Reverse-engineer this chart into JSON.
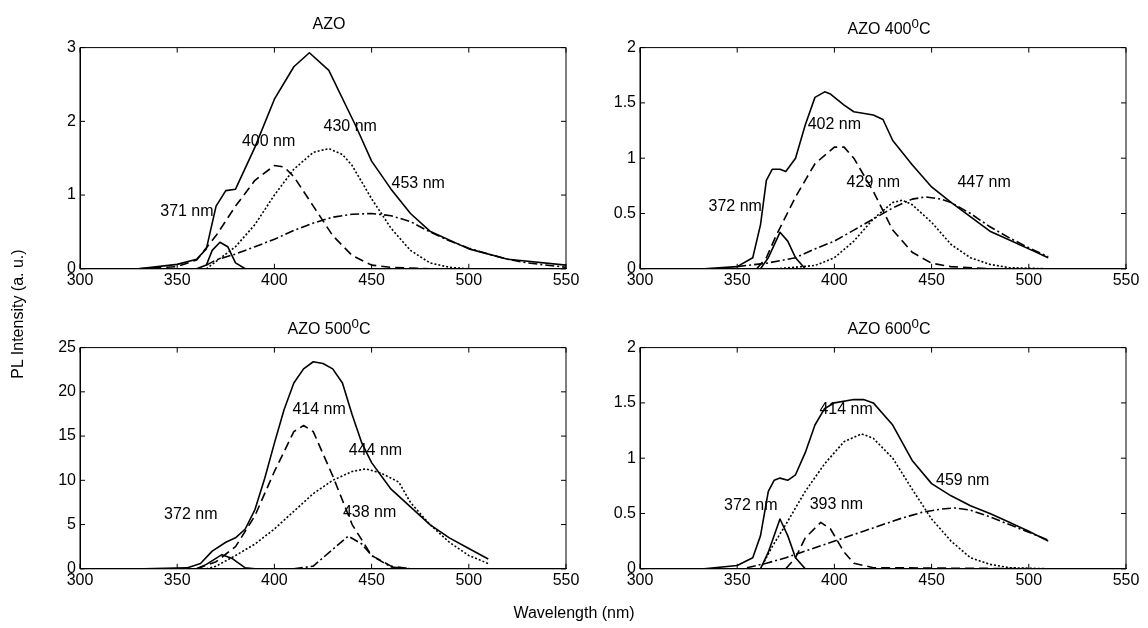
{
  "chart_data": [
    {
      "type": "line",
      "title": "AZO",
      "ylabel": "PL Intensity (a. u.)",
      "xlim": [
        300,
        550
      ],
      "ylim": [
        0,
        3
      ],
      "xticks": [
        300,
        350,
        400,
        450,
        500,
        550
      ],
      "yticks": [
        0,
        1,
        2,
        3
      ],
      "grid": false,
      "legend": false,
      "annotations": [
        {
          "text": "371 nm",
          "x": 372,
          "y": 0.36
        },
        {
          "text": "400 nm",
          "x": 400,
          "y": 1.4
        },
        {
          "text": "430 nm",
          "x": 428,
          "y": 1.63
        },
        {
          "text": "453 nm",
          "x": 450,
          "y": 0.75
        }
      ],
      "series": [
        {
          "type": "line",
          "color": "#000000",
          "line_style": "solid",
          "x": [
            330,
            350,
            360,
            365,
            370,
            375,
            380,
            390,
            400,
            410,
            418,
            428,
            442,
            450,
            460,
            470,
            480,
            500,
            520,
            550
          ],
          "values": [
            0,
            0.06,
            0.13,
            0.27,
            0.85,
            1.06,
            1.08,
            1.65,
            2.3,
            2.74,
            2.93,
            2.69,
            1.93,
            1.46,
            1.08,
            0.75,
            0.51,
            0.27,
            0.13,
            0.05
          ]
        },
        {
          "type": "line",
          "color": "#000000",
          "line_style": "solid",
          "x": [
            360,
            365,
            368,
            372,
            376,
            380,
            385,
            390
          ],
          "values": [
            0,
            0.05,
            0.25,
            0.36,
            0.3,
            0.08,
            0,
            0
          ]
        },
        {
          "type": "line",
          "color": "#000000",
          "line_style": "dashed",
          "x": [
            330,
            350,
            360,
            370,
            380,
            390,
            400,
            405,
            410,
            420,
            430,
            440,
            450,
            460,
            480,
            550
          ],
          "values": [
            0,
            0.03,
            0.12,
            0.45,
            0.85,
            1.2,
            1.4,
            1.38,
            1.25,
            0.85,
            0.45,
            0.18,
            0.05,
            0.02,
            0,
            0
          ]
        },
        {
          "type": "line",
          "color": "#000000",
          "line_style": "dotted",
          "x": [
            365,
            370,
            380,
            390,
            400,
            410,
            420,
            428,
            435,
            440,
            450,
            460,
            470,
            480,
            490,
            500,
            550
          ],
          "values": [
            0,
            0.1,
            0.3,
            0.6,
            1.0,
            1.35,
            1.58,
            1.63,
            1.55,
            1.4,
            0.95,
            0.55,
            0.25,
            0.08,
            0.02,
            0,
            0
          ]
        },
        {
          "type": "line",
          "color": "#000000",
          "line_style": "dashdot",
          "x": [
            365,
            370,
            380,
            390,
            400,
            410,
            420,
            430,
            440,
            450,
            460,
            470,
            480,
            490,
            500,
            510,
            520,
            530,
            550
          ],
          "values": [
            0.05,
            0.12,
            0.2,
            0.3,
            0.4,
            0.52,
            0.62,
            0.7,
            0.74,
            0.75,
            0.72,
            0.64,
            0.5,
            0.38,
            0.28,
            0.2,
            0.13,
            0.08,
            0.02
          ]
        }
      ]
    },
    {
      "type": "line",
      "title": "AZO 400$^{0}$C",
      "xlim": [
        300,
        550
      ],
      "ylim": [
        0,
        2
      ],
      "xticks": [
        300,
        350,
        400,
        450,
        500,
        550
      ],
      "yticks": [
        0,
        0.5,
        1,
        1.5,
        2
      ],
      "grid": false,
      "legend": false,
      "annotations": [
        {
          "text": "372 nm",
          "x": 372,
          "y": 0.33
        },
        {
          "text": "402 nm",
          "x": 400,
          "y": 1.1
        },
        {
          "text": "429 nm",
          "x": 435,
          "y": 0.62
        },
        {
          "text": "447 nm",
          "x": 447,
          "y": 0.65
        }
      ],
      "series": [
        {
          "type": "line",
          "color": "#000000",
          "line_style": "solid",
          "x": [
            333,
            350,
            358,
            362,
            365,
            368,
            372,
            375,
            380,
            385,
            390,
            395,
            398,
            405,
            410,
            420,
            425,
            430,
            440,
            450,
            460,
            480,
            500,
            510
          ],
          "values": [
            0,
            0.02,
            0.1,
            0.4,
            0.8,
            0.9,
            0.9,
            0.88,
            1.0,
            1.3,
            1.55,
            1.6,
            1.58,
            1.48,
            1.42,
            1.39,
            1.35,
            1.16,
            0.94,
            0.74,
            0.6,
            0.34,
            0.18,
            0.1
          ]
        },
        {
          "type": "line",
          "color": "#000000",
          "line_style": "solid",
          "x": [
            362,
            366,
            372,
            376,
            380,
            385,
            390
          ],
          "values": [
            0,
            0.1,
            0.33,
            0.25,
            0.1,
            0,
            0
          ]
        },
        {
          "type": "line",
          "color": "#000000",
          "line_style": "dashed",
          "x": [
            360,
            365,
            370,
            380,
            390,
            400,
            405,
            410,
            420,
            430,
            440,
            450,
            460,
            480,
            510
          ],
          "values": [
            0,
            0.1,
            0.3,
            0.65,
            0.95,
            1.1,
            1.1,
            1.0,
            0.7,
            0.35,
            0.15,
            0.05,
            0.02,
            0,
            0
          ]
        },
        {
          "type": "line",
          "color": "#000000",
          "line_style": "dotted",
          "x": [
            370,
            390,
            400,
            410,
            420,
            430,
            435,
            440,
            450,
            460,
            470,
            480,
            490,
            510
          ],
          "values": [
            0,
            0.03,
            0.1,
            0.25,
            0.45,
            0.6,
            0.62,
            0.58,
            0.42,
            0.22,
            0.1,
            0.04,
            0.01,
            0
          ]
        },
        {
          "type": "line",
          "color": "#000000",
          "line_style": "dashdot",
          "x": [
            350,
            365,
            380,
            390,
            400,
            410,
            420,
            430,
            440,
            447,
            455,
            460,
            470,
            480,
            490,
            500,
            510
          ],
          "values": [
            0.02,
            0.05,
            0.1,
            0.18,
            0.25,
            0.35,
            0.45,
            0.55,
            0.63,
            0.65,
            0.63,
            0.6,
            0.5,
            0.38,
            0.28,
            0.19,
            0.11
          ]
        }
      ]
    },
    {
      "type": "line",
      "title": "AZO 500$^{0}$C",
      "xlabel": "Wavelength (nm)",
      "xlim": [
        300,
        550
      ],
      "ylim": [
        0,
        25
      ],
      "xticks": [
        300,
        350,
        400,
        450,
        500,
        550
      ],
      "yticks": [
        0,
        5,
        10,
        15,
        20,
        25
      ],
      "grid": false,
      "legend": false,
      "annotations": [
        {
          "text": "372 nm",
          "x": 373,
          "y": 1.6
        },
        {
          "text": "414 nm",
          "x": 415,
          "y": 16.2
        },
        {
          "text": "444 nm",
          "x": 447,
          "y": 11.3
        },
        {
          "text": "438 nm",
          "x": 438,
          "y": 3.7
        }
      ],
      "series": [
        {
          "type": "line",
          "color": "#000000",
          "line_style": "solid",
          "x": [
            333,
            355,
            362,
            368,
            375,
            380,
            385,
            390,
            395,
            400,
            405,
            410,
            415,
            420,
            425,
            430,
            435,
            440,
            445,
            450,
            460,
            470,
            480,
            490,
            500,
            510
          ],
          "values": [
            0,
            0.1,
            0.6,
            2.0,
            3.0,
            3.5,
            4.5,
            6.7,
            10.2,
            14.2,
            18,
            21,
            22.6,
            23.4,
            23.2,
            22.6,
            21,
            17.4,
            14.2,
            12,
            9,
            7,
            5,
            3.5,
            2.3,
            1.1
          ]
        },
        {
          "type": "line",
          "color": "#000000",
          "line_style": "solid",
          "x": [
            360,
            365,
            373,
            378,
            385,
            390
          ],
          "values": [
            0,
            0.5,
            1.6,
            1.2,
            0.1,
            0
          ]
        },
        {
          "type": "line",
          "color": "#000000",
          "line_style": "dashed",
          "x": [
            360,
            370,
            380,
            390,
            400,
            410,
            415,
            420,
            430,
            440,
            450,
            460,
            470,
            510
          ],
          "values": [
            0,
            0.8,
            2.5,
            6,
            11,
            15.5,
            16.2,
            15.5,
            10.5,
            5,
            1.5,
            0.3,
            0,
            0
          ]
        },
        {
          "type": "line",
          "color": "#000000",
          "line_style": "dotted",
          "x": [
            365,
            370,
            380,
            390,
            400,
            410,
            420,
            430,
            440,
            447,
            455,
            464,
            470,
            480,
            490,
            500,
            510
          ],
          "values": [
            0,
            0.3,
            1.5,
            2.8,
            4.5,
            6.5,
            8.5,
            10,
            11,
            11.3,
            10.8,
            9.8,
            7.5,
            5,
            3,
            1.5,
            0.6
          ]
        },
        {
          "type": "line",
          "color": "#000000",
          "line_style": "dashdot",
          "x": [
            410,
            420,
            430,
            438,
            445,
            450,
            460,
            470,
            510
          ],
          "values": [
            0,
            0.3,
            2.2,
            3.7,
            2.8,
            1.5,
            0.2,
            0,
            0
          ]
        }
      ]
    },
    {
      "type": "line",
      "title": "AZO 600$^{0}$C",
      "xlim": [
        300,
        550
      ],
      "ylim": [
        0,
        2
      ],
      "xticks": [
        300,
        350,
        400,
        450,
        500,
        550
      ],
      "yticks": [
        0,
        0.5,
        1,
        1.5,
        2
      ],
      "grid": false,
      "legend": false,
      "annotations": [
        {
          "text": "372 nm",
          "x": 372,
          "y": 0.45
        },
        {
          "text": "393 nm",
          "x": 393,
          "y": 0.42
        },
        {
          "text": "414 nm",
          "x": 414,
          "y": 1.22
        },
        {
          "text": "459 nm",
          "x": 462,
          "y": 0.55
        }
      ],
      "series": [
        {
          "type": "line",
          "color": "#000000",
          "line_style": "solid",
          "x": [
            333,
            350,
            358,
            362,
            366,
            369,
            372,
            376,
            380,
            385,
            390,
            395,
            400,
            410,
            415,
            420,
            430,
            440,
            450,
            460,
            470,
            480,
            490,
            500,
            510
          ],
          "values": [
            0,
            0.03,
            0.1,
            0.3,
            0.7,
            0.8,
            0.82,
            0.8,
            0.85,
            1.05,
            1.3,
            1.45,
            1.5,
            1.53,
            1.53,
            1.5,
            1.3,
            0.98,
            0.77,
            0.66,
            0.57,
            0.5,
            0.42,
            0.34,
            0.25
          ]
        },
        {
          "type": "line",
          "color": "#000000",
          "line_style": "solid",
          "x": [
            362,
            366,
            372,
            376,
            380,
            385,
            390
          ],
          "values": [
            0,
            0.15,
            0.45,
            0.3,
            0.1,
            0,
            0
          ]
        },
        {
          "type": "line",
          "color": "#000000",
          "line_style": "dashed",
          "x": [
            375,
            380,
            385,
            393,
            398,
            405,
            410,
            420,
            510
          ],
          "values": [
            0,
            0.1,
            0.28,
            0.42,
            0.36,
            0.15,
            0.05,
            0.01,
            0
          ]
        },
        {
          "type": "line",
          "color": "#000000",
          "line_style": "dotted",
          "x": [
            362,
            368,
            375,
            385,
            395,
            405,
            414,
            420,
            430,
            440,
            450,
            460,
            470,
            480,
            490,
            510
          ],
          "values": [
            0,
            0.2,
            0.4,
            0.7,
            0.95,
            1.15,
            1.22,
            1.18,
            1.0,
            0.72,
            0.45,
            0.25,
            0.1,
            0.04,
            0.01,
            0
          ]
        },
        {
          "type": "line",
          "color": "#000000",
          "line_style": "dashdot",
          "x": [
            355,
            365,
            375,
            385,
            395,
            405,
            415,
            425,
            435,
            445,
            455,
            462,
            470,
            480,
            490,
            500,
            510
          ],
          "values": [
            0.01,
            0.05,
            0.1,
            0.16,
            0.22,
            0.28,
            0.34,
            0.4,
            0.46,
            0.51,
            0.54,
            0.55,
            0.53,
            0.47,
            0.4,
            0.33,
            0.26
          ]
        }
      ]
    }
  ]
}
